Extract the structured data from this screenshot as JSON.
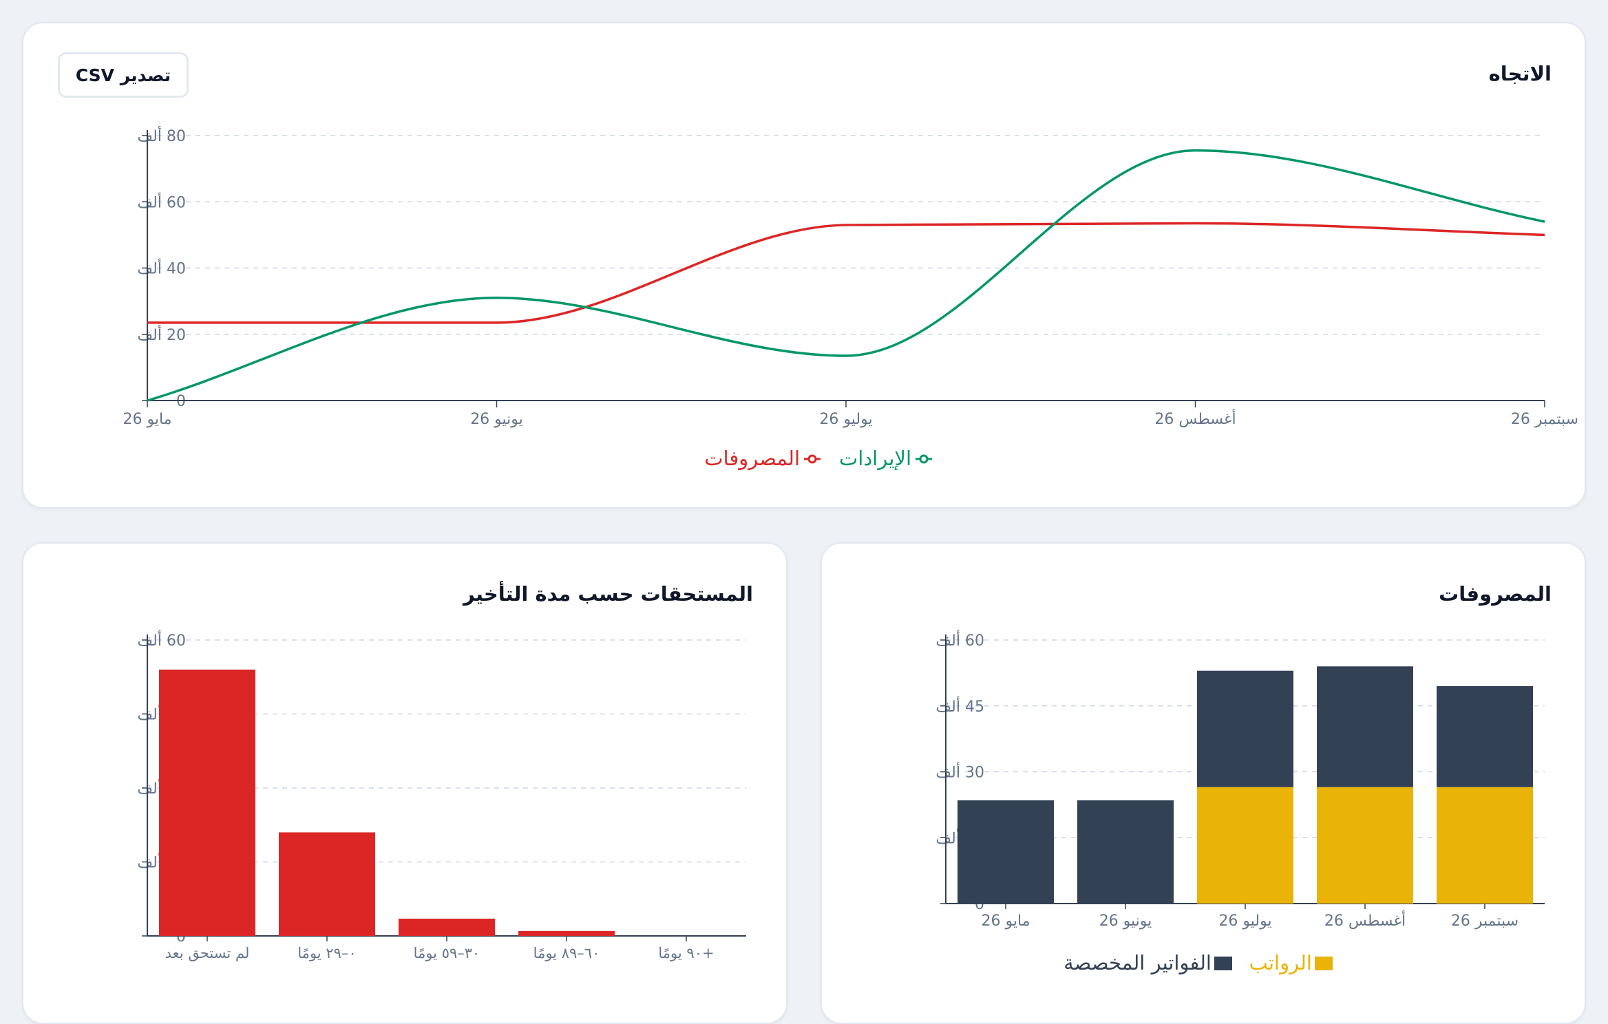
{
  "colors": {
    "revenue": "#059669",
    "expenses": "#dc2626",
    "bills": "#334155",
    "salaries": "#eab308",
    "grid": "#cbd5e1",
    "axis": "#334155",
    "tick_text": "#64748b"
  },
  "trend": {
    "title": "الاتجاه",
    "export_label": "تصدير CSV"
  },
  "aging": {
    "title": "المستحقات حسب مدة التأخير"
  },
  "expenses_card": {
    "title": "المصروفات"
  },
  "chart_data": [
    {
      "type": "line",
      "title": "الاتجاه",
      "x": [
        "مايو 26",
        "يونيو 26",
        "يوليو 26",
        "أغسطس 26",
        "سبتمبر 26"
      ],
      "yticks": [
        "0",
        "20 ألف",
        "40 ألف",
        "60 ألف",
        "80 ألف"
      ],
      "ylim": [
        0,
        80000
      ],
      "grid": true,
      "legend_position": "bottom",
      "series": [
        {
          "name": "الإيرادات",
          "color": "#059669",
          "values": [
            0,
            31000,
            13500,
            75500,
            54000
          ]
        },
        {
          "name": "المصروفات",
          "color": "#dc2626",
          "values": [
            23500,
            23500,
            53000,
            53500,
            50000
          ]
        }
      ]
    },
    {
      "type": "bar",
      "title": "المستحقات حسب مدة التأخير",
      "categories": [
        "لم تستحق بعد",
        "٠–٢٩ يومًا",
        "٣٠–٥٩ يومًا",
        "٦٠–٨٩ يومًا",
        "+٩٠ يومًا"
      ],
      "values": [
        54000,
        21000,
        3500,
        1000,
        0
      ],
      "yticks": [
        "0",
        "15 ألف",
        "30 ألف",
        "45 ألف",
        "60 ألف"
      ],
      "ylim": [
        0,
        60000
      ],
      "grid": true,
      "color": "#dc2626"
    },
    {
      "type": "bar",
      "stacked": true,
      "title": "المصروفات",
      "categories": [
        "مايو 26",
        "يونيو 26",
        "يوليو 26",
        "أغسطس 26",
        "سبتمبر 26"
      ],
      "yticks": [
        "0",
        "15 ألف",
        "30 ألف",
        "45 ألف",
        "60 ألف"
      ],
      "ylim": [
        0,
        60000
      ],
      "grid": true,
      "legend_position": "bottom",
      "series": [
        {
          "name": "الرواتب",
          "color": "#eab308",
          "values": [
            0,
            0,
            26500,
            26500,
            26500
          ]
        },
        {
          "name": "الفواتير المخصصة",
          "color": "#334155",
          "values": [
            23500,
            23500,
            26500,
            27500,
            23000
          ]
        }
      ]
    }
  ]
}
